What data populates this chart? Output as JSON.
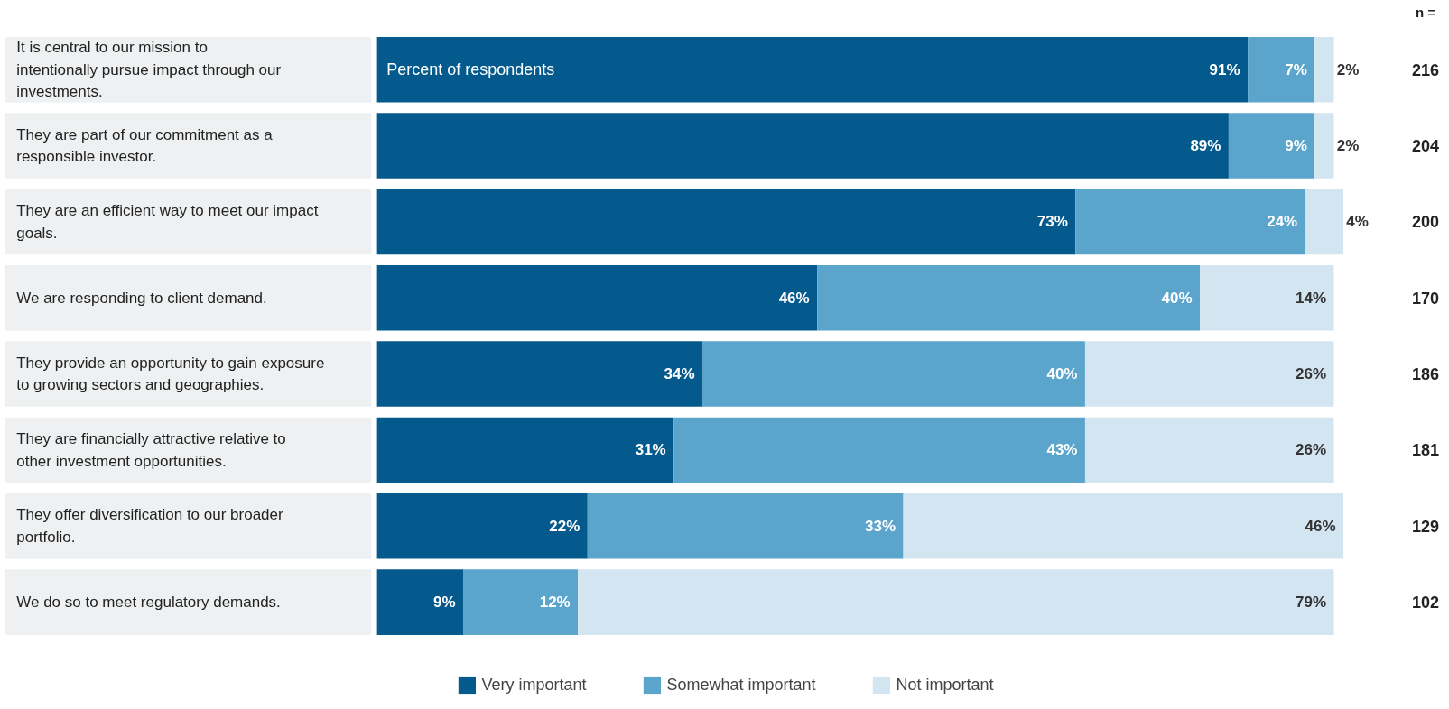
{
  "chart_data": {
    "type": "bar",
    "orientation": "horizontal",
    "stacked": true,
    "grid": false,
    "legend": "bottom",
    "tick_labels": "y",
    "categories": [
      "It is central to our mission to intentionally pursue impact through our investments.",
      "They are part of our commitment as a responsible investor.",
      "They are an efficient way to meet our impact goals.",
      "We are responding to client demand.",
      "They provide an opportunity to gain exposure to growing sectors and geographies.",
      "They are financially attractive relative to other investment opportunities.",
      "They offer diversification to our broader portfolio.",
      "We do so to meet regulatory demands."
    ],
    "series": [
      {
        "name": "Very important",
        "color": "#045a8d",
        "values": [
          91,
          89,
          73,
          46,
          34,
          31,
          22,
          9
        ],
        "value_labels": [
          "91%",
          "89%",
          "73%",
          "46%",
          "34%",
          "31%",
          "22%",
          "9%"
        ]
      },
      {
        "name": "Somewhat important",
        "color": "#5ba4cc",
        "values": [
          7,
          9,
          24,
          40,
          40,
          43,
          33,
          12
        ],
        "value_labels": [
          "7%",
          "9%",
          "24%",
          "40%",
          "40%",
          "43%",
          "33%",
          "12%"
        ]
      },
      {
        "name": "Not important",
        "color": "#d3e5f0",
        "values": [
          2,
          2,
          4,
          14,
          26,
          26,
          46,
          79
        ],
        "value_labels": [
          "2%",
          "2%",
          "4%",
          "14%",
          "26%",
          "26%",
          "46%",
          "79%"
        ]
      }
    ],
    "annotations": [
      "Percent of respondents",
      "n =",
      "216",
      "204",
      "200",
      "170",
      "186",
      "181",
      "129",
      "102"
    ]
  }
}
